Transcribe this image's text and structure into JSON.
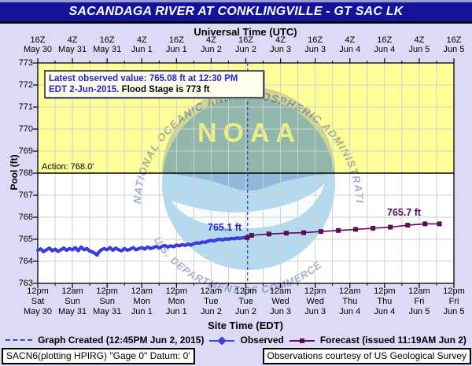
{
  "title": "SACANDAGA RIVER AT CONKLINGVILLE - GT SAC LK",
  "top_axis": {
    "label": "Universal Time (UTC)",
    "ticks": [
      {
        "time": "16Z",
        "date": "May 30"
      },
      {
        "time": "4Z",
        "date": "May 31"
      },
      {
        "time": "16Z",
        "date": "May 31"
      },
      {
        "time": "4Z",
        "date": "Jun 1"
      },
      {
        "time": "16Z",
        "date": "Jun 1"
      },
      {
        "time": "4Z",
        "date": "Jun 2"
      },
      {
        "time": "16Z",
        "date": "Jun 2"
      },
      {
        "time": "4Z",
        "date": "Jun 3"
      },
      {
        "time": "16Z",
        "date": "Jun 3"
      },
      {
        "time": "4Z",
        "date": "Jun 4"
      },
      {
        "time": "16Z",
        "date": "Jun 4"
      },
      {
        "time": "4Z",
        "date": "Jun 5"
      },
      {
        "time": "16Z",
        "date": "Jun 5"
      }
    ]
  },
  "bottom_axis": {
    "label": "Site Time (EDT)",
    "ticks": [
      {
        "time": "12pm",
        "day": "Sat",
        "date": "May 30"
      },
      {
        "time": "12am",
        "day": "Sun",
        "date": "May 31"
      },
      {
        "time": "12pm",
        "day": "Sun",
        "date": "May 31"
      },
      {
        "time": "12am",
        "day": "Mon",
        "date": "Jun 1"
      },
      {
        "time": "12pm",
        "day": "Mon",
        "date": "Jun 1"
      },
      {
        "time": "12am",
        "day": "Tue",
        "date": "Jun 2"
      },
      {
        "time": "12pm",
        "day": "Tue",
        "date": "Jun 2"
      },
      {
        "time": "12am",
        "day": "Wed",
        "date": "Jun 3"
      },
      {
        "time": "12pm",
        "day": "Wed",
        "date": "Jun 3"
      },
      {
        "time": "12am",
        "day": "Thu",
        "date": "Jun 4"
      },
      {
        "time": "12pm",
        "day": "Thu",
        "date": "Jun 4"
      },
      {
        "time": "12am",
        "day": "Fri",
        "date": "Jun 5"
      },
      {
        "time": "12pm",
        "day": "Fri",
        "date": "Jun 5"
      }
    ]
  },
  "y_axis": {
    "label": "Pool (ft)",
    "ticks": [
      763,
      764,
      765,
      766,
      767,
      768,
      769,
      770,
      771,
      772,
      773
    ]
  },
  "info_box": {
    "line1": "Latest observed value: 765.08 ft at 12:30 PM",
    "line2_blue": "EDT 2-Jun-2015.",
    "line2_black": " Flood Stage is 773 ft"
  },
  "annotations": {
    "action_label": "Action: 768.0'",
    "observed_callout": "765.1 ft",
    "forecast_callout": "765.7 ft"
  },
  "legend": {
    "created_label": "Graph Created (12:45PM Jun 2, 2015)",
    "observed_label": "Observed",
    "forecast_label": "Forecast (issued 11:19AM Jun 2)"
  },
  "footer": {
    "left": "SACN6(plotting HPIRG) \"Gage 0\" Datum: 0'",
    "right": "Observations courtesy of US Geological Survey"
  },
  "watermark": {
    "noaa": "NOAA",
    "top_arc": "NATIONAL OCEANIC AND ATMOSPHERIC ADMINISTRATION",
    "bottom_arc": "U.S. DEPARTMENT OF COMMERCE"
  },
  "colors": {
    "page_bg": "#dbdbf5",
    "titlebar": "#14149a",
    "yellow_zone": "#ffff99",
    "plot_bg": "#ffffff",
    "grid": "#d0d0d0",
    "observed": "#3c3cd8",
    "forecast": "#5c0a5c",
    "created_line": "#4343cc",
    "info_blue": "#2424cc",
    "watermark_navy": "#1a3a8c",
    "watermark_blue": "#49a8d8"
  },
  "chart_data": {
    "type": "line",
    "title": "SACANDAGA RIVER AT CONKLINGVILLE - GT SAC LK",
    "ylabel": "Pool (ft)",
    "ylim": [
      763,
      773
    ],
    "x_unit": "hours since 12pm EDT Sat May 30 2015",
    "x_span_hours": 144,
    "x_tick_interval_hours": 12,
    "grid": true,
    "flood_stage_ft": 773,
    "action_stage_ft": 768,
    "action_zone": [
      768,
      773
    ],
    "graph_created_hour": 72.6,
    "latest_observed": {
      "value_ft": 765.08,
      "time": "12:30 PM EDT 2-Jun-2015"
    },
    "series": [
      {
        "name": "Observed",
        "points": [
          [
            0,
            764.5
          ],
          [
            1,
            764.56
          ],
          [
            2,
            764.44
          ],
          [
            3,
            764.52
          ],
          [
            4,
            764.6
          ],
          [
            5,
            764.48
          ],
          [
            6,
            764.55
          ],
          [
            7,
            764.45
          ],
          [
            8,
            764.52
          ],
          [
            9,
            764.6
          ],
          [
            10,
            764.5
          ],
          [
            11,
            764.58
          ],
          [
            12,
            764.52
          ],
          [
            13,
            764.62
          ],
          [
            14,
            764.48
          ],
          [
            15,
            764.65
          ],
          [
            16,
            764.52
          ],
          [
            17,
            764.58
          ],
          [
            18,
            764.46
          ],
          [
            19,
            764.42
          ],
          [
            20,
            764.34
          ],
          [
            20.5,
            764.28
          ],
          [
            21,
            764.4
          ],
          [
            22,
            764.52
          ],
          [
            23,
            764.58
          ],
          [
            24,
            764.52
          ],
          [
            25,
            764.62
          ],
          [
            26,
            764.5
          ],
          [
            27,
            764.6
          ],
          [
            28,
            764.52
          ],
          [
            29,
            764.48
          ],
          [
            30,
            764.58
          ],
          [
            31,
            764.5
          ],
          [
            32,
            764.55
          ],
          [
            33,
            764.62
          ],
          [
            34,
            764.52
          ],
          [
            35,
            764.58
          ],
          [
            36,
            764.62
          ],
          [
            37,
            764.55
          ],
          [
            38,
            764.65
          ],
          [
            39,
            764.58
          ],
          [
            40,
            764.62
          ],
          [
            41,
            764.68
          ],
          [
            42,
            764.6
          ],
          [
            43,
            764.68
          ],
          [
            44,
            764.72
          ],
          [
            45,
            764.65
          ],
          [
            46,
            764.7
          ],
          [
            47,
            764.66
          ],
          [
            48,
            764.74
          ],
          [
            49,
            764.7
          ],
          [
            50,
            764.76
          ],
          [
            51,
            764.72
          ],
          [
            52,
            764.78
          ],
          [
            53,
            764.74
          ],
          [
            54,
            764.8
          ],
          [
            55,
            764.84
          ],
          [
            56,
            764.82
          ],
          [
            57,
            764.88
          ],
          [
            58,
            764.86
          ],
          [
            59,
            764.92
          ],
          [
            60,
            764.95
          ],
          [
            61,
            764.92
          ],
          [
            62,
            764.98
          ],
          [
            63,
            765.0
          ],
          [
            64,
            764.97
          ],
          [
            65,
            765.02
          ],
          [
            66,
            765.0
          ],
          [
            67,
            765.04
          ],
          [
            68,
            765.02
          ],
          [
            69,
            765.06
          ],
          [
            70,
            765.04
          ],
          [
            71,
            765.07
          ],
          [
            72,
            765.06
          ],
          [
            72.5,
            765.08
          ]
        ]
      },
      {
        "name": "Forecast",
        "points": [
          [
            72.5,
            765.08
          ],
          [
            74,
            765.18
          ],
          [
            80,
            765.24
          ],
          [
            86,
            765.28
          ],
          [
            92,
            765.3
          ],
          [
            98,
            765.35
          ],
          [
            104,
            765.4
          ],
          [
            110,
            765.45
          ],
          [
            116,
            765.5
          ],
          [
            122,
            765.55
          ],
          [
            128,
            765.64
          ],
          [
            134,
            765.7
          ],
          [
            139,
            765.7
          ]
        ]
      }
    ]
  }
}
